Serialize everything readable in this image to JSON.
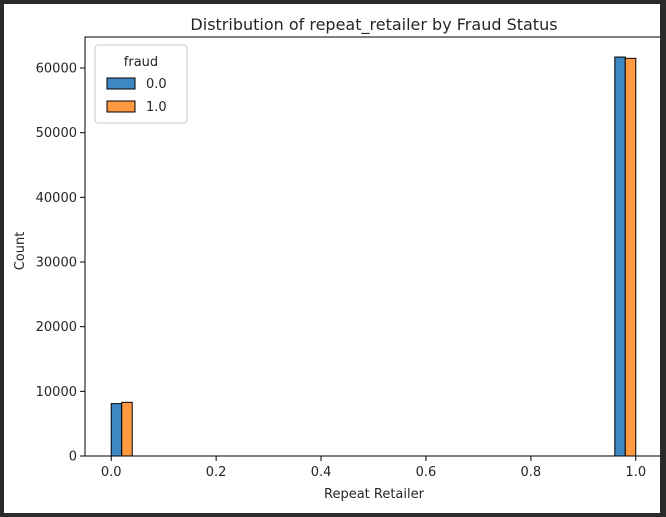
{
  "chart_data": {
    "type": "bar",
    "title": "Distribution of repeat_retailer by Fraud Status",
    "xlabel": "Repeat Retailer",
    "ylabel": "Count",
    "xlim": [
      -0.05,
      1.05
    ],
    "ylim": [
      0,
      64800
    ],
    "x_ticks": [
      "0.0",
      "0.2",
      "0.4",
      "0.6",
      "0.8",
      "1.0"
    ],
    "y_ticks": [
      "0",
      "10000",
      "20000",
      "30000",
      "40000",
      "50000",
      "60000"
    ],
    "legend": {
      "title": "fraud",
      "position": "top-left"
    },
    "series": [
      {
        "name": "0.0",
        "color": "#3f87c4",
        "bars": [
          {
            "x0": 0.0,
            "x1": 0.02,
            "value": 8100
          },
          {
            "x0": 0.96,
            "x1": 0.98,
            "value": 61700
          }
        ]
      },
      {
        "name": "1.0",
        "color": "#ff9a40",
        "bars": [
          {
            "x0": 0.02,
            "x1": 0.04,
            "value": 8300
          },
          {
            "x0": 0.98,
            "x1": 1.0,
            "value": 61500
          }
        ]
      }
    ]
  }
}
